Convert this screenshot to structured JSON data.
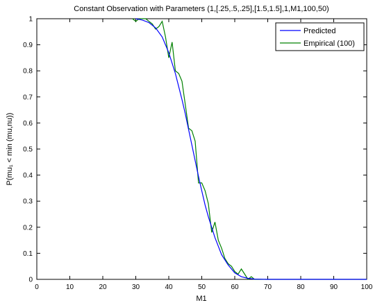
{
  "chart_data": {
    "type": "line",
    "title": "Constant Observation with Parameters (1,[.25,.5,.25],[1.5,1.5],1,M1,100,50)",
    "xlabel": "M1",
    "ylabel": "P(mu₁ < min (mu,nu))",
    "xlim": [
      0,
      100
    ],
    "ylim": [
      0,
      1
    ],
    "xticks": [
      0,
      10,
      20,
      30,
      40,
      50,
      60,
      70,
      80,
      90,
      100
    ],
    "yticks": [
      0,
      0.1,
      0.2,
      0.3,
      0.4,
      0.5,
      0.6,
      0.7,
      0.8,
      0.9,
      1
    ],
    "ytick_labels": [
      "0",
      "0.1",
      "0.2",
      "0.3",
      "0.4",
      "0.5",
      "0.6",
      "0.7",
      "0.8",
      "0.9",
      "1"
    ],
    "grid": false,
    "legend": "top-right",
    "series": [
      {
        "name": "Predicted",
        "color": "#0000ff",
        "x": [
          30,
          32,
          34,
          36,
          38,
          40,
          42,
          44,
          45,
          46,
          47,
          48,
          49,
          50,
          51,
          52,
          54,
          56,
          58,
          60,
          62,
          64,
          66,
          70,
          80,
          90,
          100
        ],
        "y": [
          1.0,
          0.995,
          0.985,
          0.965,
          0.93,
          0.87,
          0.79,
          0.69,
          0.635,
          0.575,
          0.515,
          0.455,
          0.395,
          0.34,
          0.285,
          0.24,
          0.16,
          0.095,
          0.055,
          0.025,
          0.01,
          0.004,
          0.001,
          0,
          0,
          0,
          0
        ]
      },
      {
        "name": "Empirical (100)",
        "color": "#008000",
        "x": [
          29,
          30,
          31,
          32,
          33,
          34,
          35,
          36,
          37,
          38,
          39,
          40,
          41,
          42,
          43,
          44,
          45,
          46,
          47,
          48,
          49,
          50,
          51,
          52,
          53,
          54,
          55,
          56,
          57,
          58,
          59,
          60,
          61,
          62,
          63,
          64,
          65,
          66,
          70,
          80,
          90,
          100
        ],
        "y": [
          1.0,
          0.99,
          1.0,
          1.0,
          1.0,
          0.99,
          0.98,
          0.96,
          0.97,
          0.99,
          0.93,
          0.85,
          0.91,
          0.8,
          0.79,
          0.76,
          0.67,
          0.58,
          0.57,
          0.53,
          0.37,
          0.37,
          0.34,
          0.29,
          0.18,
          0.22,
          0.15,
          0.12,
          0.08,
          0.06,
          0.05,
          0.03,
          0.02,
          0.04,
          0.02,
          0.0,
          0.01,
          0,
          0,
          0,
          0,
          0
        ]
      }
    ]
  }
}
